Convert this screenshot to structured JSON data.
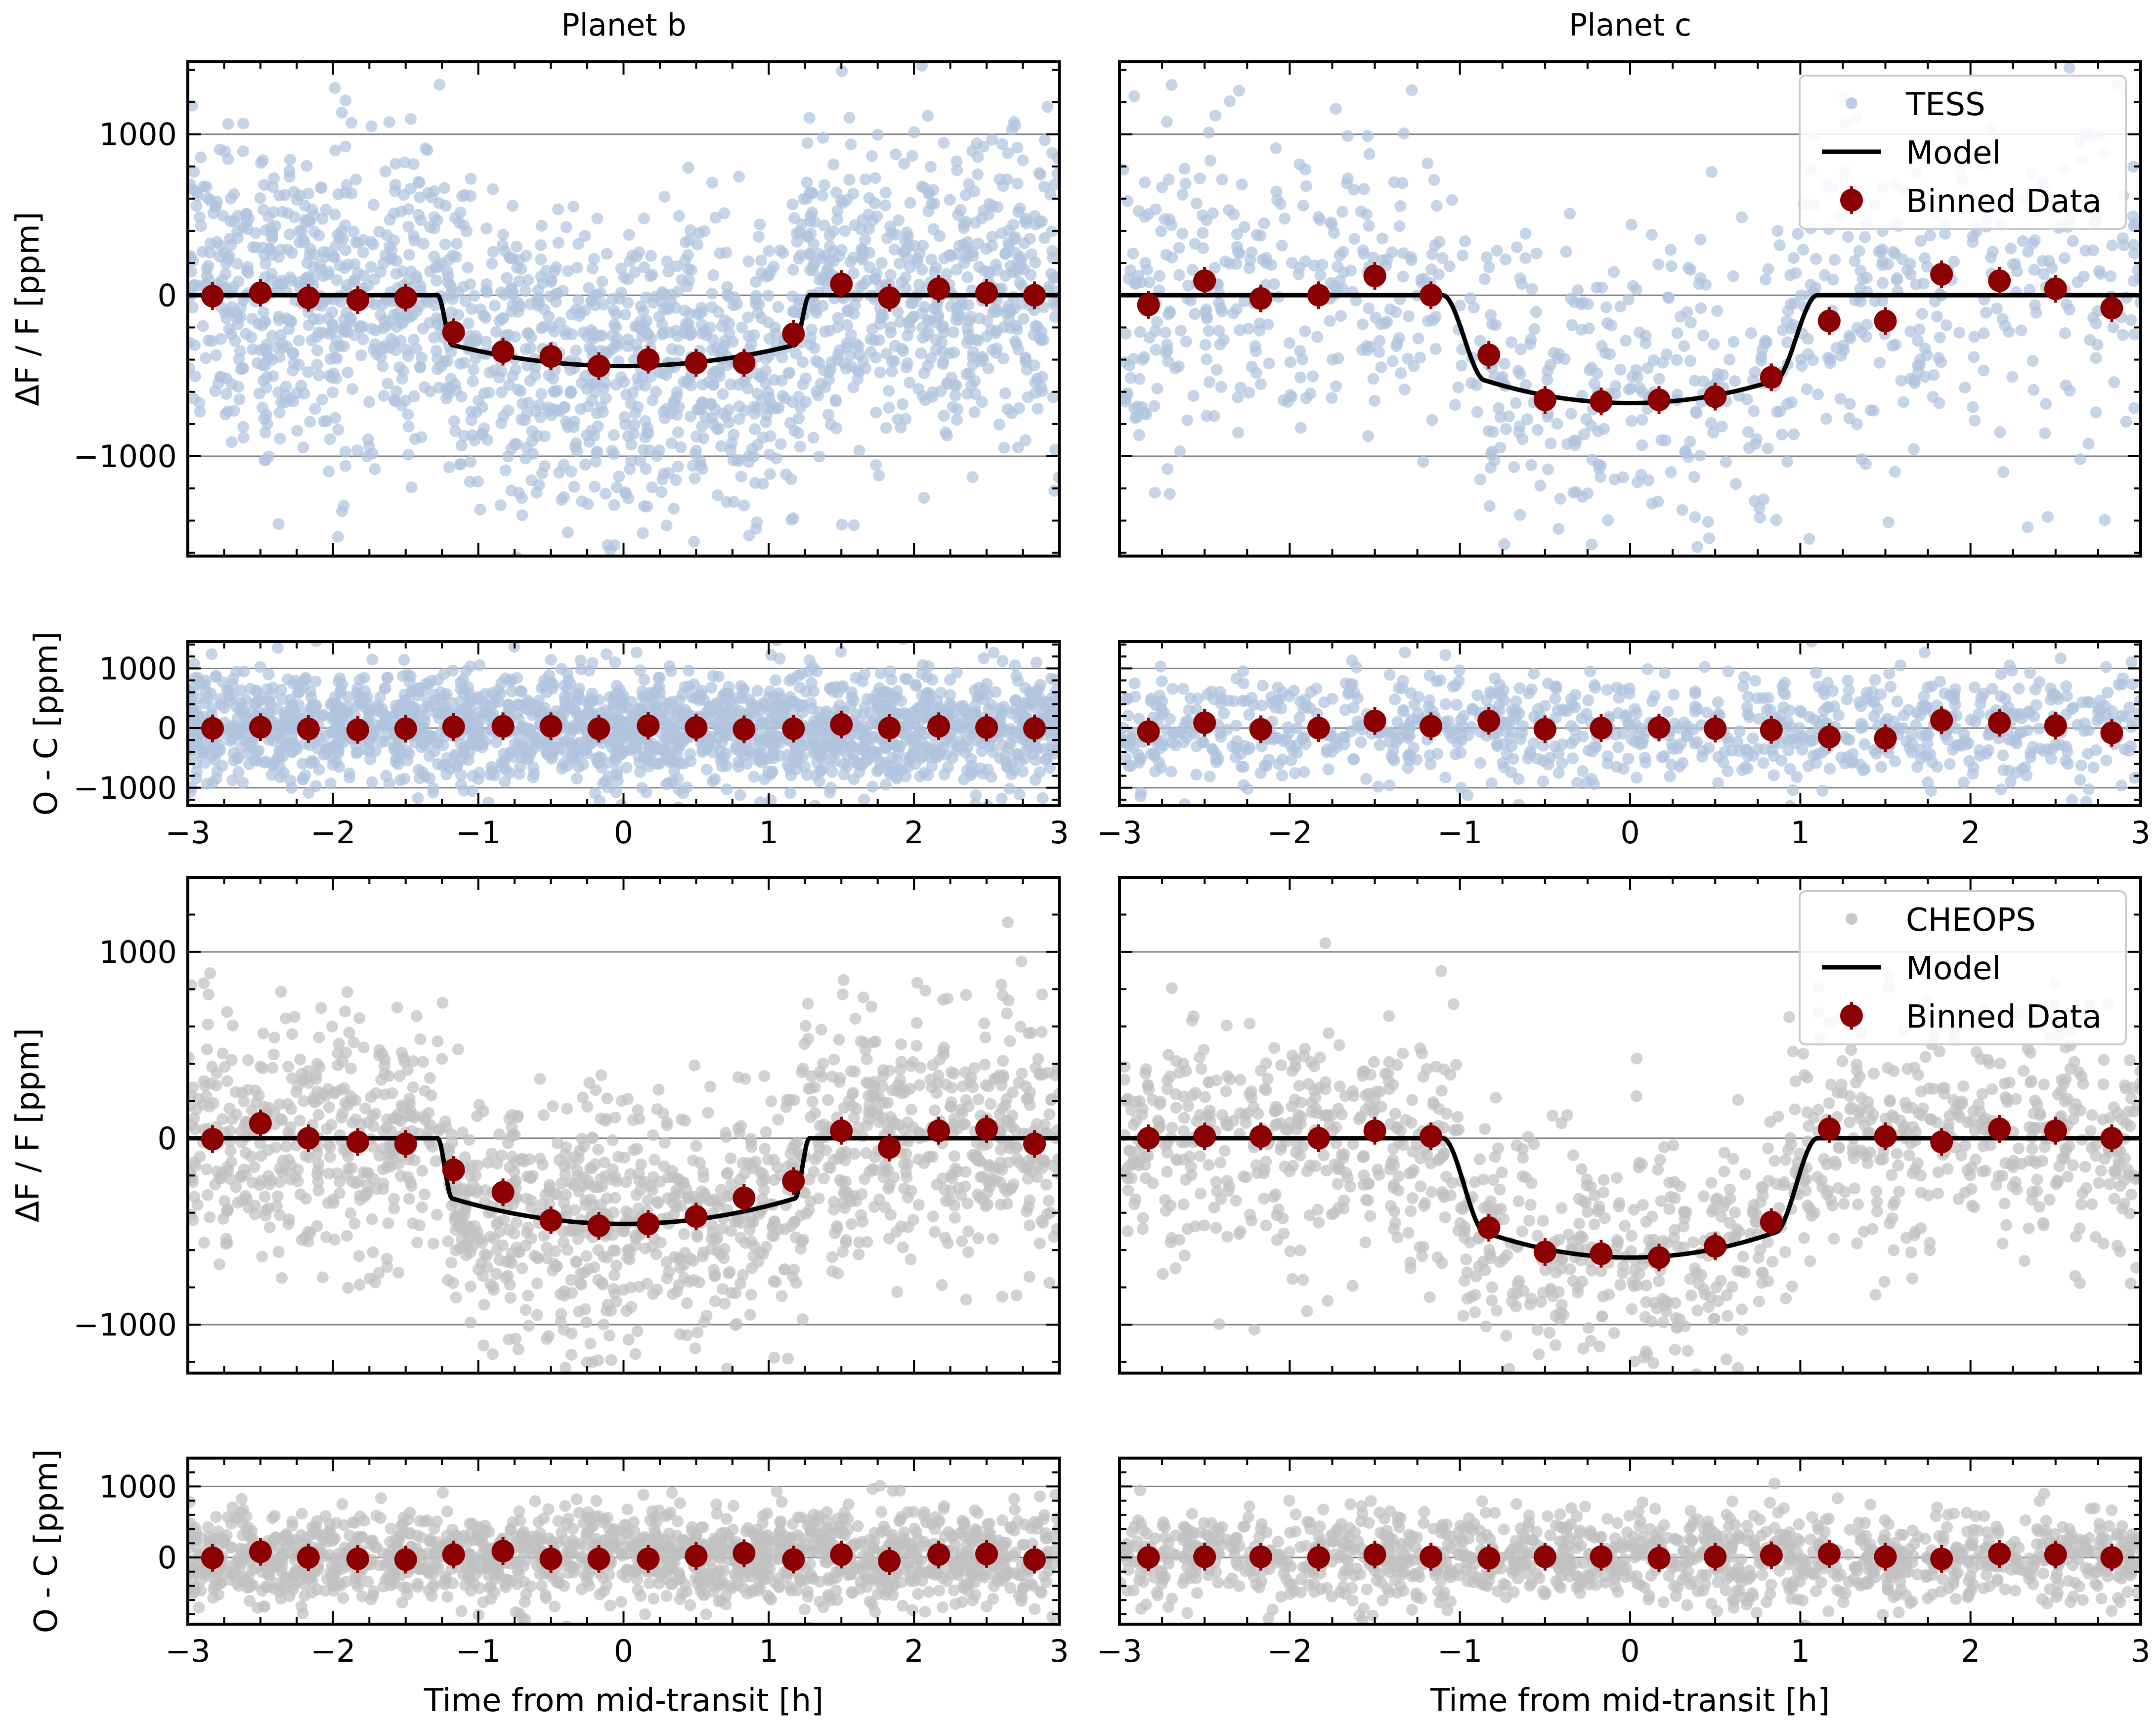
{
  "figure": {
    "column_titles": [
      "Planet b",
      "Planet c"
    ],
    "xlabel": "Time from mid-transit [h]"
  },
  "colors": {
    "tess_points": "#b0c4de",
    "cheops_points": "#c0c0c0",
    "binned": "#8b0000",
    "model": "#000000",
    "gridline": "#808080"
  },
  "chart_data": [
    {
      "id": "tess-b-flux",
      "type": "scatter",
      "instrument": "TESS",
      "planet": "b",
      "ylabel": "ΔF / F [ppm]",
      "xlim": [
        -3,
        3
      ],
      "ylim": [
        -1620,
        1450
      ],
      "yticks": [
        -1000,
        0,
        1000
      ],
      "ytick_labels": [
        "−1000",
        "0",
        "1000"
      ],
      "xticks": [
        -3,
        -2,
        -1,
        0,
        1,
        2,
        3
      ],
      "show_xticklabels": false,
      "model": {
        "depth": 440,
        "t1": 1.28,
        "t2": 1.18
      },
      "binned": {
        "x": [
          -2.83,
          -2.5,
          -2.17,
          -1.83,
          -1.5,
          -1.17,
          -0.83,
          -0.5,
          -0.17,
          0.17,
          0.5,
          0.83,
          1.17,
          1.5,
          1.83,
          2.17,
          2.5,
          2.83
        ],
        "y": [
          -5,
          15,
          -15,
          -30,
          -15,
          -230,
          -350,
          -380,
          -440,
          -400,
          -420,
          -420,
          -240,
          70,
          -15,
          40,
          15,
          0
        ]
      },
      "raw_scatter": {
        "n": 1900,
        "sigma": 480,
        "seed": 11
      }
    },
    {
      "id": "tess-c-flux",
      "type": "scatter",
      "instrument": "TESS",
      "planet": "c",
      "ylabel": "",
      "xlim": [
        -3,
        3
      ],
      "ylim": [
        -1620,
        1450
      ],
      "yticks": [
        -1000,
        0,
        1000
      ],
      "ytick_labels": [
        "",
        "",
        ""
      ],
      "xticks": [
        -3,
        -2,
        -1,
        0,
        1,
        2,
        3
      ],
      "show_xticklabels": false,
      "model": {
        "depth": 670,
        "t1": 1.1,
        "t2": 0.85
      },
      "binned": {
        "x": [
          -2.83,
          -2.5,
          -2.17,
          -1.83,
          -1.5,
          -1.17,
          -0.83,
          -0.5,
          -0.17,
          0.17,
          0.5,
          0.83,
          1.17,
          1.5,
          1.83,
          2.17,
          2.5,
          2.83
        ],
        "y": [
          -60,
          90,
          -20,
          0,
          120,
          0,
          -370,
          -650,
          -660,
          -650,
          -630,
          -510,
          -160,
          -160,
          130,
          90,
          40,
          -80
        ]
      },
      "raw_scatter": {
        "n": 900,
        "sigma": 480,
        "seed": 23
      },
      "legend": {
        "items": [
          "TESS",
          "Model",
          "Binned Data"
        ],
        "position": "top-right"
      }
    },
    {
      "id": "tess-b-resid",
      "type": "scatter",
      "instrument": "TESS",
      "planet": "b",
      "ylabel": "O - C [ppm]",
      "xlim": [
        -3,
        3
      ],
      "ylim": [
        -1300,
        1450
      ],
      "yticks": [
        -1000,
        0,
        1000
      ],
      "ytick_labels": [
        "−1000",
        "0",
        "1000"
      ],
      "xticks": [
        -3,
        -2,
        -1,
        0,
        1,
        2,
        3
      ],
      "xtick_labels": [
        "−3",
        "−2",
        "−1",
        "0",
        "1",
        "2",
        "3"
      ],
      "show_xticklabels": true,
      "zero_line": true,
      "binned": {
        "x": [
          -2.83,
          -2.5,
          -2.17,
          -1.83,
          -1.5,
          -1.17,
          -0.83,
          -0.5,
          -0.17,
          0.17,
          0.5,
          0.83,
          1.17,
          1.5,
          1.83,
          2.17,
          2.5,
          2.83
        ],
        "y": [
          -5,
          15,
          -15,
          -30,
          -10,
          20,
          30,
          30,
          -10,
          40,
          10,
          -20,
          -10,
          60,
          0,
          30,
          10,
          -5
        ]
      },
      "raw_scatter": {
        "n": 1900,
        "sigma": 480,
        "seed": 37
      }
    },
    {
      "id": "tess-c-resid",
      "type": "scatter",
      "instrument": "TESS",
      "planet": "c",
      "ylabel": "",
      "xlim": [
        -3,
        3
      ],
      "ylim": [
        -1300,
        1450
      ],
      "yticks": [
        -1000,
        0,
        1000
      ],
      "ytick_labels": [
        "",
        "",
        ""
      ],
      "xticks": [
        -3,
        -2,
        -1,
        0,
        1,
        2,
        3
      ],
      "xtick_labels": [
        "−3",
        "−2",
        "−1",
        "0",
        "1",
        "2",
        "3"
      ],
      "show_xticklabels": true,
      "zero_line": true,
      "binned": {
        "x": [
          -2.83,
          -2.5,
          -2.17,
          -1.83,
          -1.5,
          -1.17,
          -0.83,
          -0.5,
          -0.17,
          0.17,
          0.5,
          0.83,
          1.17,
          1.5,
          1.83,
          2.17,
          2.5,
          2.83
        ],
        "y": [
          -60,
          90,
          -20,
          0,
          120,
          30,
          120,
          -20,
          0,
          10,
          -10,
          -30,
          -150,
          -170,
          130,
          90,
          40,
          -80
        ]
      },
      "raw_scatter": {
        "n": 900,
        "sigma": 480,
        "seed": 41
      }
    },
    {
      "id": "cheops-b-flux",
      "type": "scatter",
      "instrument": "CHEOPS",
      "planet": "b",
      "ylabel": "ΔF / F [ppm]",
      "xlim": [
        -3,
        3
      ],
      "ylim": [
        -1260,
        1400
      ],
      "yticks": [
        -1000,
        0,
        1000
      ],
      "ytick_labels": [
        "−1000",
        "0",
        "1000"
      ],
      "xticks": [
        -3,
        -2,
        -1,
        0,
        1,
        2,
        3
      ],
      "show_xticklabels": false,
      "model": {
        "depth": 460,
        "t1": 1.28,
        "t2": 1.18
      },
      "binned": {
        "x": [
          -2.83,
          -2.5,
          -2.17,
          -1.83,
          -1.5,
          -1.17,
          -0.83,
          -0.5,
          -0.17,
          0.17,
          0.5,
          0.83,
          1.17,
          1.5,
          1.83,
          2.17,
          2.5,
          2.83
        ],
        "y": [
          -5,
          80,
          0,
          -20,
          -30,
          -170,
          -290,
          -440,
          -470,
          -460,
          -420,
          -320,
          -230,
          40,
          -50,
          40,
          50,
          -30
        ]
      },
      "raw_scatter": {
        "n": 1500,
        "sigma": 340,
        "seed": 53
      }
    },
    {
      "id": "cheops-c-flux",
      "type": "scatter",
      "instrument": "CHEOPS",
      "planet": "c",
      "ylabel": "",
      "xlim": [
        -3,
        3
      ],
      "ylim": [
        -1260,
        1400
      ],
      "yticks": [
        -1000,
        0,
        1000
      ],
      "ytick_labels": [
        "",
        "",
        ""
      ],
      "xticks": [
        -3,
        -2,
        -1,
        0,
        1,
        2,
        3
      ],
      "show_xticklabels": false,
      "model": {
        "depth": 640,
        "t1": 1.1,
        "t2": 0.85
      },
      "binned": {
        "x": [
          -2.83,
          -2.5,
          -2.17,
          -1.83,
          -1.5,
          -1.17,
          -0.83,
          -0.5,
          -0.17,
          0.17,
          0.5,
          0.83,
          1.17,
          1.5,
          1.83,
          2.17,
          2.5,
          2.83
        ],
        "y": [
          0,
          10,
          10,
          0,
          40,
          10,
          -480,
          -610,
          -620,
          -640,
          -580,
          -450,
          50,
          10,
          -20,
          50,
          40,
          0
        ]
      },
      "raw_scatter": {
        "n": 1200,
        "sigma": 320,
        "seed": 67
      },
      "legend": {
        "items": [
          "CHEOPS",
          "Model",
          "Binned Data"
        ],
        "position": "top-right"
      }
    },
    {
      "id": "cheops-b-resid",
      "type": "scatter",
      "instrument": "CHEOPS",
      "planet": "b",
      "ylabel": "O - C [ppm]",
      "xlim": [
        -3,
        3
      ],
      "ylim": [
        -940,
        1400
      ],
      "yticks": [
        0,
        1000
      ],
      "ytick_labels": [
        "0",
        "1000"
      ],
      "xticks": [
        -3,
        -2,
        -1,
        0,
        1,
        2,
        3
      ],
      "xtick_labels": [
        "−3",
        "−2",
        "−1",
        "0",
        "1",
        "2",
        "3"
      ],
      "show_xticklabels": true,
      "zero_line": true,
      "binned": {
        "x": [
          -2.83,
          -2.5,
          -2.17,
          -1.83,
          -1.5,
          -1.17,
          -0.83,
          -0.5,
          -0.17,
          0.17,
          0.5,
          0.83,
          1.17,
          1.5,
          1.83,
          2.17,
          2.5,
          2.83
        ],
        "y": [
          -5,
          80,
          0,
          -20,
          -30,
          40,
          90,
          -20,
          -20,
          -20,
          20,
          60,
          -30,
          40,
          -50,
          40,
          50,
          -30
        ]
      },
      "raw_scatter": {
        "n": 1500,
        "sigma": 330,
        "seed": 71
      }
    },
    {
      "id": "cheops-c-resid",
      "type": "scatter",
      "instrument": "CHEOPS",
      "planet": "c",
      "ylabel": "",
      "xlim": [
        -3,
        3
      ],
      "ylim": [
        -940,
        1400
      ],
      "yticks": [
        0,
        1000
      ],
      "ytick_labels": [
        "",
        ""
      ],
      "xticks": [
        -3,
        -2,
        -1,
        0,
        1,
        2,
        3
      ],
      "xtick_labels": [
        "−3",
        "−2",
        "−1",
        "0",
        "1",
        "2",
        "3"
      ],
      "show_xticklabels": true,
      "zero_line": true,
      "binned": {
        "x": [
          -2.83,
          -2.5,
          -2.17,
          -1.83,
          -1.5,
          -1.17,
          -0.83,
          -0.5,
          -0.17,
          0.17,
          0.5,
          0.83,
          1.17,
          1.5,
          1.83,
          2.17,
          2.5,
          2.83
        ],
        "y": [
          0,
          10,
          10,
          0,
          40,
          10,
          -10,
          10,
          10,
          -10,
          10,
          30,
          50,
          10,
          -20,
          50,
          40,
          0
        ]
      },
      "raw_scatter": {
        "n": 1200,
        "sigma": 330,
        "seed": 83
      }
    }
  ]
}
